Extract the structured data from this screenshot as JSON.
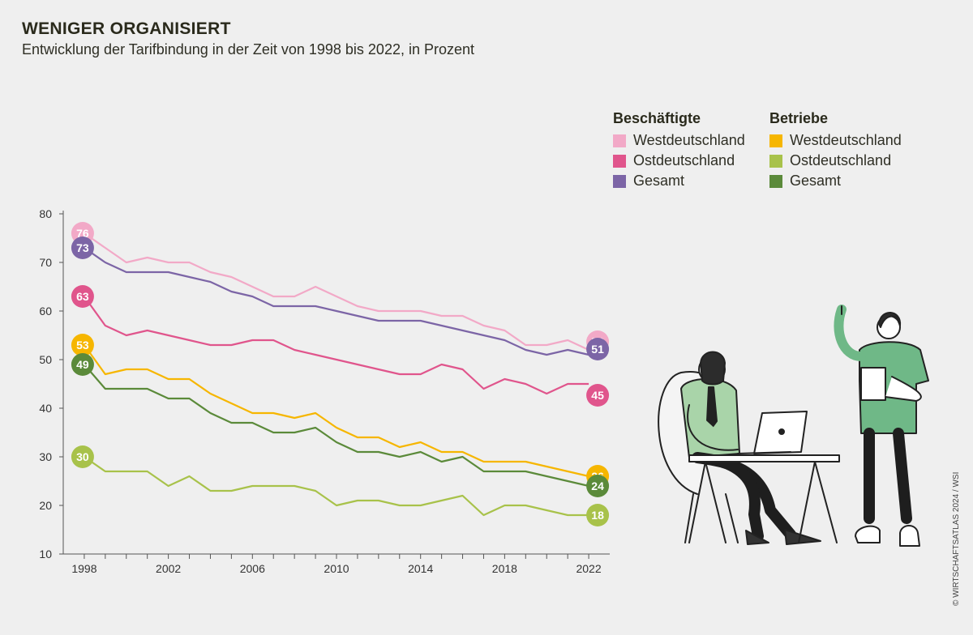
{
  "header": {
    "title": "WENIGER ORGANISIERT",
    "subtitle": "Entwicklung der Tarifbindung in der Zeit von 1998 bis 2022, in Prozent"
  },
  "legend": {
    "group1_title": "Beschäftigte",
    "group2_title": "Betriebe"
  },
  "copyright": "© WIRTSCHAFTSATLAS 2024 / WSI",
  "chart_data": {
    "type": "line",
    "title": "WENIGER ORGANISIERT",
    "subtitle": "Entwicklung der Tarifbindung in der Zeit von 1998 bis 2022, in Prozent",
    "xlabel": "",
    "ylabel": "",
    "ylim": [
      10,
      80
    ],
    "yticks": [
      10,
      20,
      30,
      40,
      50,
      60,
      70,
      80
    ],
    "xticks": [
      1998,
      2002,
      2006,
      2010,
      2014,
      2018,
      2022
    ],
    "grid": false,
    "legend_position": "top-right",
    "x": [
      1998,
      1999,
      2000,
      2001,
      2002,
      2003,
      2004,
      2005,
      2006,
      2007,
      2008,
      2009,
      2010,
      2011,
      2012,
      2013,
      2014,
      2015,
      2016,
      2017,
      2018,
      2019,
      2020,
      2021,
      2022
    ],
    "series": [
      {
        "name": "Westdeutschland",
        "group": "Beschäftigte",
        "color": "#f2a9c7",
        "values": [
          76,
          73,
          70,
          71,
          70,
          70,
          68,
          67,
          65,
          63,
          63,
          65,
          63,
          61,
          60,
          60,
          60,
          59,
          59,
          57,
          56,
          53,
          53,
          54,
          52
        ],
        "start_label": "76",
        "end_label": "52"
      },
      {
        "name": "Ostdeutschland",
        "group": "Beschäftigte",
        "color": "#e0558c",
        "values": [
          63,
          57,
          55,
          56,
          55,
          54,
          53,
          53,
          54,
          54,
          52,
          51,
          50,
          49,
          48,
          47,
          47,
          49,
          48,
          44,
          46,
          45,
          43,
          45,
          45
        ],
        "start_label": "63",
        "end_label": "45"
      },
      {
        "name": "Gesamt",
        "group": "Beschäftigte",
        "color": "#7c65a6",
        "values": [
          73,
          70,
          68,
          68,
          68,
          67,
          66,
          64,
          63,
          61,
          61,
          61,
          60,
          59,
          58,
          58,
          58,
          57,
          56,
          55,
          54,
          52,
          51,
          52,
          51
        ],
        "start_label": "73",
        "end_label": "51"
      },
      {
        "name": "Westdeutschland",
        "group": "Betriebe",
        "color": "#f6b600",
        "values": [
          53,
          47,
          48,
          48,
          46,
          46,
          43,
          41,
          39,
          39,
          38,
          39,
          36,
          34,
          34,
          32,
          33,
          31,
          31,
          29,
          29,
          29,
          28,
          27,
          26
        ],
        "start_label": "53",
        "end_label": "26"
      },
      {
        "name": "Ostdeutschland",
        "group": "Betriebe",
        "color": "#a8c24a",
        "values": [
          30,
          27,
          27,
          27,
          24,
          26,
          23,
          23,
          24,
          24,
          24,
          23,
          20,
          21,
          21,
          20,
          20,
          21,
          22,
          18,
          20,
          20,
          19,
          18,
          18
        ],
        "start_label": "30",
        "end_label": "18"
      },
      {
        "name": "Gesamt",
        "group": "Betriebe",
        "color": "#5b8a3a",
        "values": [
          49,
          44,
          44,
          44,
          42,
          42,
          39,
          37,
          37,
          35,
          35,
          36,
          33,
          31,
          31,
          30,
          31,
          29,
          30,
          27,
          27,
          27,
          26,
          25,
          24
        ],
        "start_label": "49",
        "end_label": "24"
      }
    ]
  }
}
